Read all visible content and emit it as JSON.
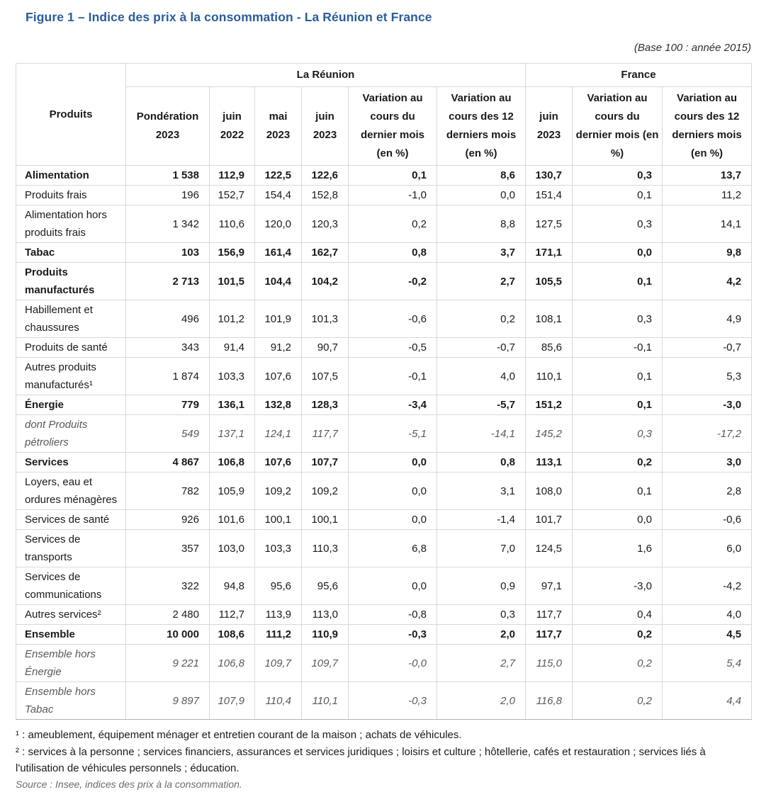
{
  "page": {
    "title": "Figure 1 – Indice des prix à la consommation - La Réunion et France",
    "base_note": "(Base 100 : année 2015)"
  },
  "colors": {
    "title_blue": "#2a5d9b",
    "table_border": "#d9d9d9",
    "muted_row_text": "#595959"
  },
  "table": {
    "corner_header": "Produits",
    "groups": [
      {
        "label": "La Réunion",
        "span": 6
      },
      {
        "label": "France",
        "span": 3
      }
    ],
    "col_headers": [
      "Pondération 2023",
      "juin 2022",
      "mai 2023",
      "juin 2023",
      "Variation au cours du dernier mois (en %)",
      "Variation au cours des 12 derniers mois (en %)",
      "juin 2023",
      "Variation au cours du dernier mois (en %)",
      "Variation au cours des 12 derniers mois (en %)"
    ],
    "rows": [
      {
        "label": "Alimentation",
        "style": "bold",
        "values": [
          "1 538",
          "112,9",
          "122,5",
          "122,6",
          "0,1",
          "8,6",
          "130,7",
          "0,3",
          "13,7"
        ]
      },
      {
        "label": "Produits frais",
        "style": "normal",
        "values": [
          "196",
          "152,7",
          "154,4",
          "152,8",
          "-1,0",
          "0,0",
          "151,4",
          "0,1",
          "11,2"
        ]
      },
      {
        "label": "Alimentation hors produits frais",
        "style": "normal",
        "values": [
          "1 342",
          "110,6",
          "120,0",
          "120,3",
          "0,2",
          "8,8",
          "127,5",
          "0,3",
          "14,1"
        ]
      },
      {
        "label": "Tabac",
        "style": "bold",
        "values": [
          "103",
          "156,9",
          "161,4",
          "162,7",
          "0,8",
          "3,7",
          "171,1",
          "0,0",
          "9,8"
        ]
      },
      {
        "label": "Produits manufacturés",
        "style": "bold",
        "values": [
          "2 713",
          "101,5",
          "104,4",
          "104,2",
          "-0,2",
          "2,7",
          "105,5",
          "0,1",
          "4,2"
        ]
      },
      {
        "label": "Habillement et chaussures",
        "style": "normal",
        "values": [
          "496",
          "101,2",
          "101,9",
          "101,3",
          "-0,6",
          "0,2",
          "108,1",
          "0,3",
          "4,9"
        ]
      },
      {
        "label": "Produits de santé",
        "style": "normal",
        "values": [
          "343",
          "91,4",
          "91,2",
          "90,7",
          "-0,5",
          "-0,7",
          "85,6",
          "-0,1",
          "-0,7"
        ]
      },
      {
        "label": "Autres produits manufacturés¹",
        "style": "normal",
        "values": [
          "1 874",
          "103,3",
          "107,6",
          "107,5",
          "-0,1",
          "4,0",
          "110,1",
          "0,1",
          "5,3"
        ]
      },
      {
        "label": "Énergie",
        "style": "bold",
        "values": [
          "779",
          "136,1",
          "132,8",
          "128,3",
          "-3,4",
          "-5,7",
          "151,2",
          "0,1",
          "-3,0"
        ]
      },
      {
        "label": "dont Produits pétroliers",
        "style": "italic",
        "values": [
          "549",
          "137,1",
          "124,1",
          "117,7",
          "-5,1",
          "-14,1",
          "145,2",
          "0,3",
          "-17,2"
        ]
      },
      {
        "label": "Services",
        "style": "bold",
        "values": [
          "4 867",
          "106,8",
          "107,6",
          "107,7",
          "0,0",
          "0,8",
          "113,1",
          "0,2",
          "3,0"
        ]
      },
      {
        "label": "Loyers, eau et ordures ménagères",
        "style": "normal",
        "values": [
          "782",
          "105,9",
          "109,2",
          "109,2",
          "0,0",
          "3,1",
          "108,0",
          "0,1",
          "2,8"
        ]
      },
      {
        "label": "Services de santé",
        "style": "normal",
        "values": [
          "926",
          "101,6",
          "100,1",
          "100,1",
          "0,0",
          "-1,4",
          "101,7",
          "0,0",
          "-0,6"
        ]
      },
      {
        "label": "Services de transports",
        "style": "normal",
        "values": [
          "357",
          "103,0",
          "103,3",
          "110,3",
          "6,8",
          "7,0",
          "124,5",
          "1,6",
          "6,0"
        ]
      },
      {
        "label": "Services de communications",
        "style": "normal",
        "values": [
          "322",
          "94,8",
          "95,6",
          "95,6",
          "0,0",
          "0,9",
          "97,1",
          "-3,0",
          "-4,2"
        ]
      },
      {
        "label": "Autres services²",
        "style": "normal",
        "values": [
          "2 480",
          "112,7",
          "113,9",
          "113,0",
          "-0,8",
          "0,3",
          "117,7",
          "0,4",
          "4,0"
        ]
      },
      {
        "label": "Ensemble",
        "style": "bold",
        "values": [
          "10 000",
          "108,6",
          "111,2",
          "110,9",
          "-0,3",
          "2,0",
          "117,7",
          "0,2",
          "4,5"
        ]
      },
      {
        "label": "Ensemble hors Énergie",
        "style": "italic",
        "values": [
          "9 221",
          "106,8",
          "109,7",
          "109,7",
          "-0,0",
          "2,7",
          "115,0",
          "0,2",
          "5,4"
        ]
      },
      {
        "label": "Ensemble hors Tabac",
        "style": "italic",
        "values": [
          "9 897",
          "107,9",
          "110,4",
          "110,1",
          "-0,3",
          "2,0",
          "116,8",
          "0,2",
          "4,4"
        ]
      }
    ]
  },
  "footnotes": {
    "note1": "¹ : ameublement, équipement ménager et entretien courant de la maison ; achats de véhicules.",
    "note2": "² : services à la personne ; services financiers, assurances et services juridiques ; loisirs et culture ; hôtellerie, cafés et restauration ; services liés à l'utilisation de véhicules personnels ; éducation.",
    "source": "Source : Insee, indices des prix à la consommation."
  }
}
